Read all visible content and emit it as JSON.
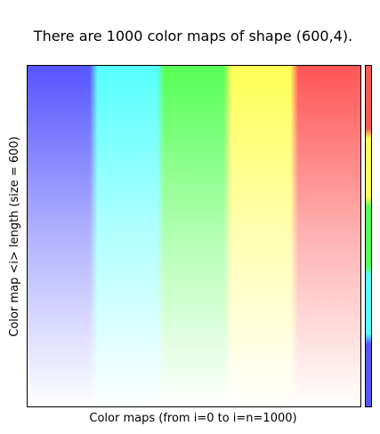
{
  "chart_data": {
    "type": "heatmap",
    "title": "There are 1000 color maps of shape (600,4).",
    "xlabel": "Color maps (from i=0 to i=n=1000)",
    "ylabel": "Color map <i> length (size = 600)",
    "n_maps": 1000,
    "map_length": 600,
    "x_ticks": "none",
    "y_ticks": "none",
    "grid": false,
    "colorbar": "right",
    "hue_sequence": [
      "#5555ff",
      "#55ffff",
      "#55ff55",
      "#ffff55",
      "#ff5555"
    ],
    "colorbar_hues": [
      "#5555ff",
      "#55ffff",
      "#55ff55",
      "#ffff55",
      "#ff5555"
    ],
    "fade_color": "#ffffff",
    "top_alpha": 1.0,
    "bottom_alpha": 0.0
  }
}
